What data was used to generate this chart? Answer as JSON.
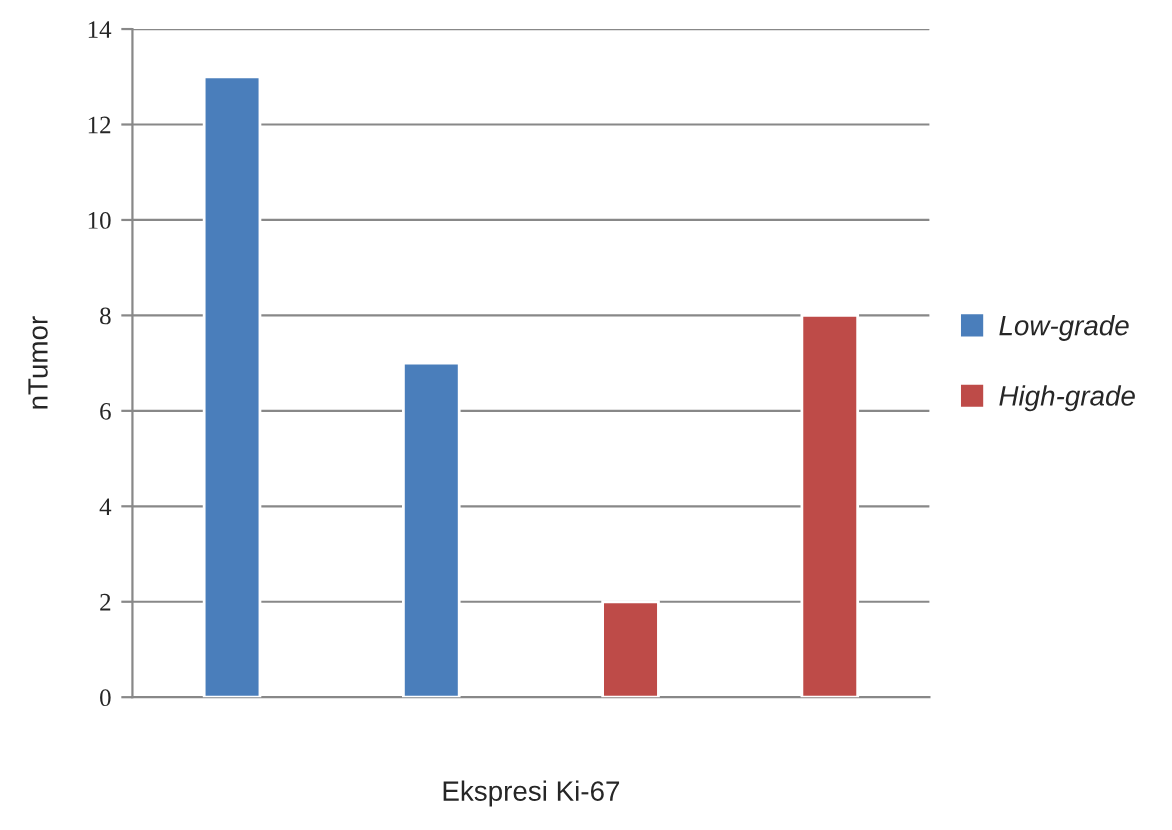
{
  "chart_data": {
    "type": "bar",
    "xlabel": "Ekspresi Ki-67",
    "ylabel": "nTumor",
    "categories": [
      null,
      null,
      null,
      null
    ],
    "series": [
      {
        "name": "Low-grade",
        "color": "#4a7ebb",
        "values": [
          13,
          7,
          null,
          null
        ]
      },
      {
        "name": "High-grade",
        "color": "#be4b48",
        "values": [
          null,
          null,
          2,
          8
        ]
      }
    ],
    "ylim": [
      0,
      14
    ],
    "yticks": [
      0,
      2,
      4,
      6,
      8,
      10,
      12,
      14
    ],
    "grid": "y",
    "legend": "right",
    "tick_labels": "y"
  }
}
